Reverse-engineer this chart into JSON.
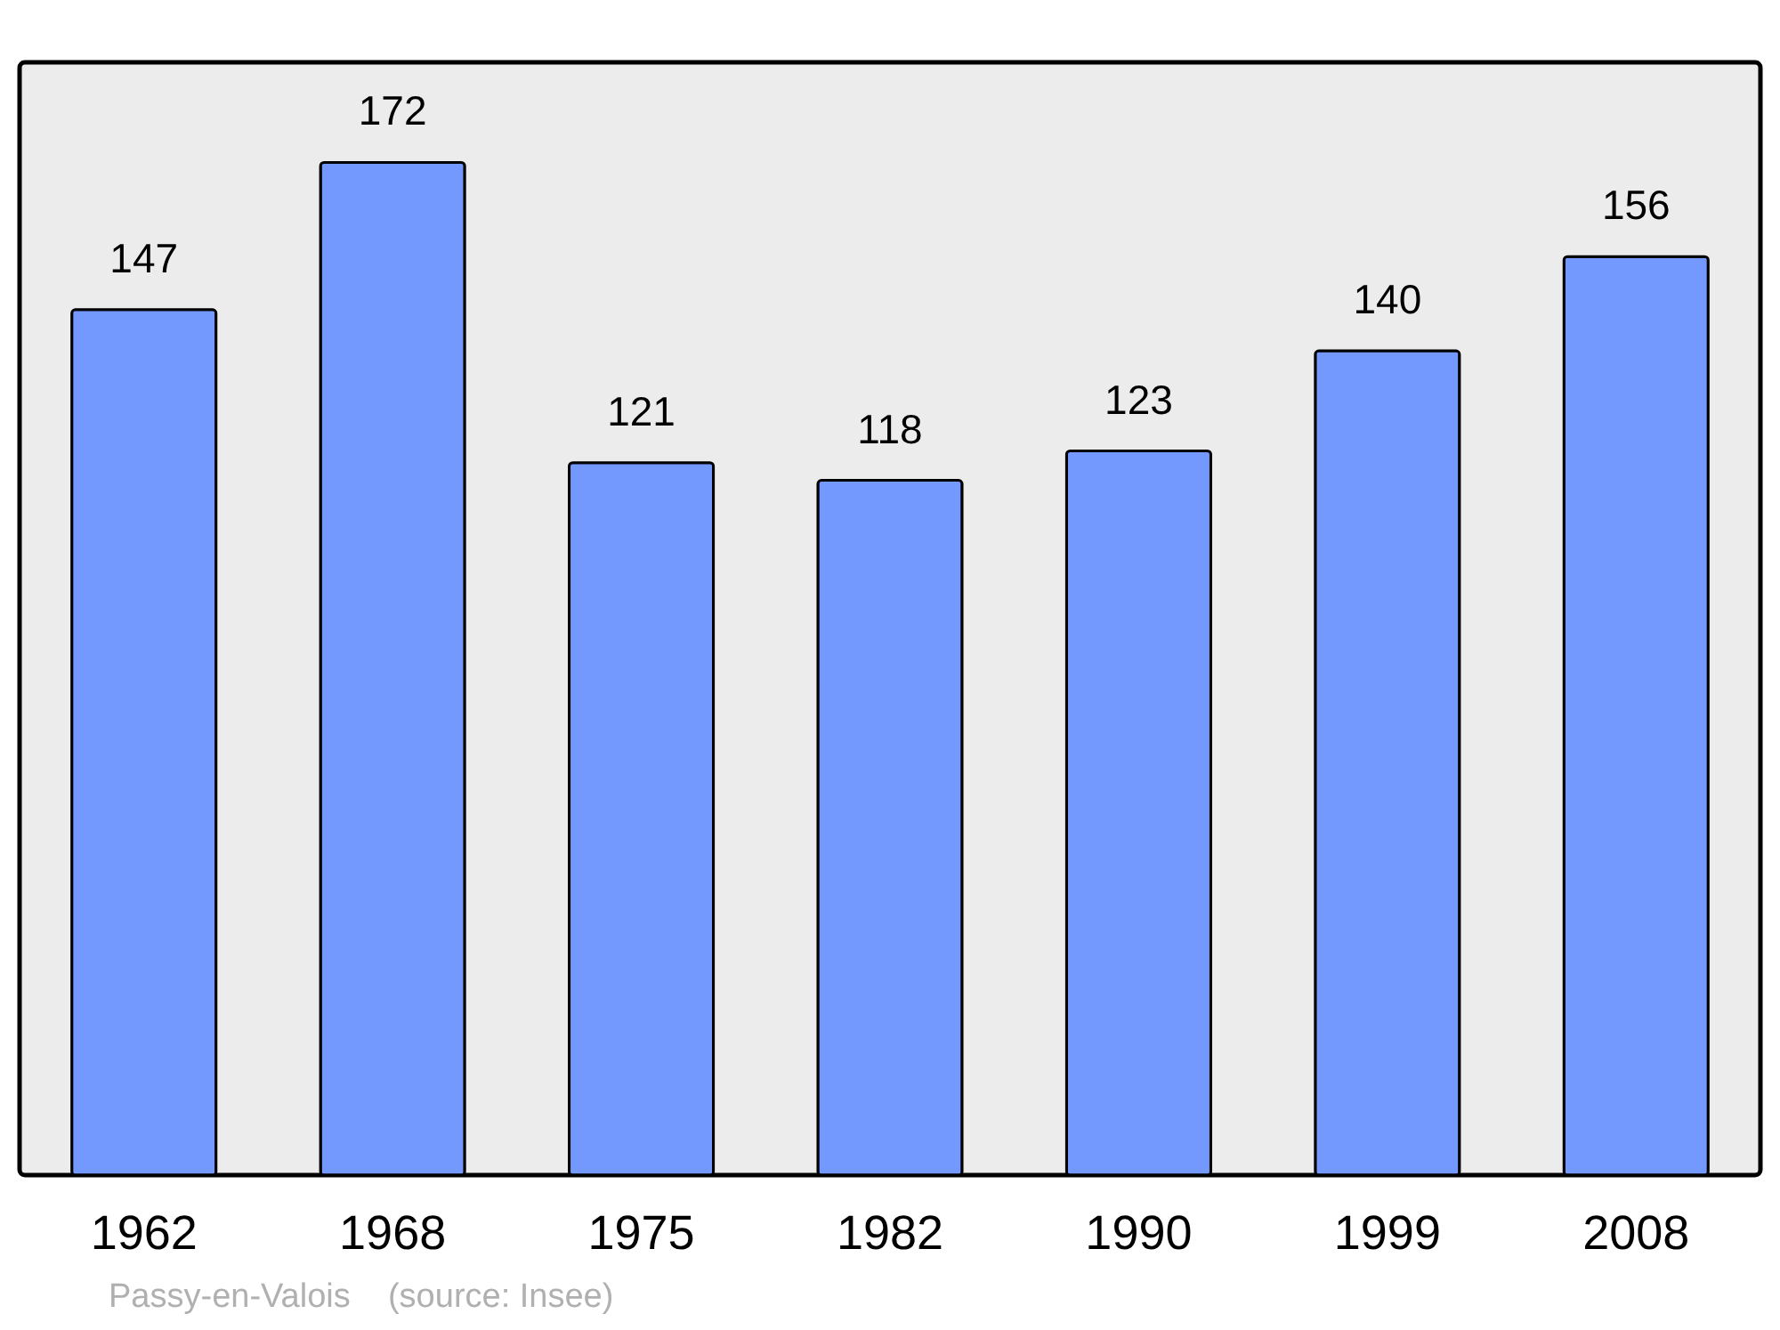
{
  "chart_data": {
    "type": "bar",
    "categories": [
      "1962",
      "1968",
      "1975",
      "1982",
      "1990",
      "1999",
      "2008"
    ],
    "values": [
      147,
      172,
      121,
      118,
      123,
      140,
      156
    ],
    "color": "#7399ff",
    "ylim": [
      0,
      189
    ],
    "data_labels": true,
    "annotations": [
      "Passy-en-Valois",
      "(source: Insee)"
    ]
  }
}
